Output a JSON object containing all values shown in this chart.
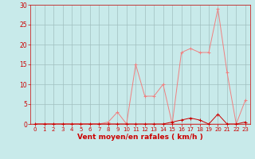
{
  "x": [
    0,
    1,
    2,
    3,
    4,
    5,
    6,
    7,
    8,
    9,
    10,
    11,
    12,
    13,
    14,
    15,
    16,
    17,
    18,
    19,
    20,
    21,
    22,
    23
  ],
  "y_rafales": [
    0,
    0,
    0,
    0,
    0,
    0,
    0,
    0,
    0.5,
    3,
    0,
    15,
    7,
    7,
    10,
    0,
    18,
    19,
    18,
    18,
    29,
    13,
    0,
    6
  ],
  "y_moyen": [
    0,
    0,
    0,
    0,
    0,
    0,
    0,
    0,
    0,
    0,
    0,
    0,
    0,
    0,
    0,
    0.5,
    1,
    1.5,
    1,
    0,
    2.5,
    0,
    0,
    0.5
  ],
  "color_rafales": "#f08080",
  "color_moyen": "#cc0000",
  "background": "#c8eaea",
  "grid_color": "#a0bfbf",
  "xlabel": "Vent moyen/en rafales ( km/h )",
  "xlabel_color": "#cc0000",
  "ylim": [
    0,
    30
  ],
  "xlim": [
    -0.5,
    23.5
  ],
  "yticks": [
    0,
    5,
    10,
    15,
    20,
    25,
    30
  ],
  "xticks": [
    0,
    1,
    2,
    3,
    4,
    5,
    6,
    7,
    8,
    9,
    10,
    11,
    12,
    13,
    14,
    15,
    16,
    17,
    18,
    19,
    20,
    21,
    22,
    23
  ],
  "tick_fontsize": 5.0,
  "xlabel_fontsize": 6.5,
  "ytick_fontsize": 5.5
}
